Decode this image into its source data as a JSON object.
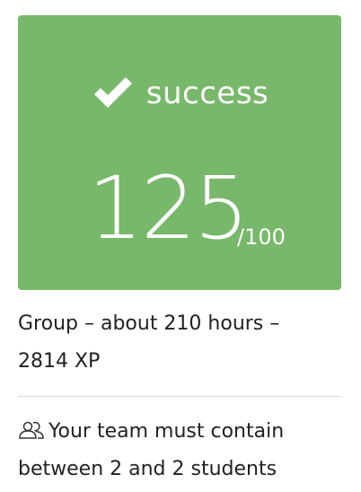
{
  "colors": {
    "success_bg": "#78b86a",
    "text": "#222222",
    "divider": "#d6d6d6"
  },
  "result": {
    "status_icon": "checkmark-icon",
    "status": "success",
    "score": "125",
    "max_score": "/100"
  },
  "project": {
    "line1": "Group – about 210 hours –",
    "line2": "2814 XP"
  },
  "team": {
    "icon": "users-icon",
    "line1": "Your team must contain",
    "line2": "between 2 and 2 students"
  }
}
